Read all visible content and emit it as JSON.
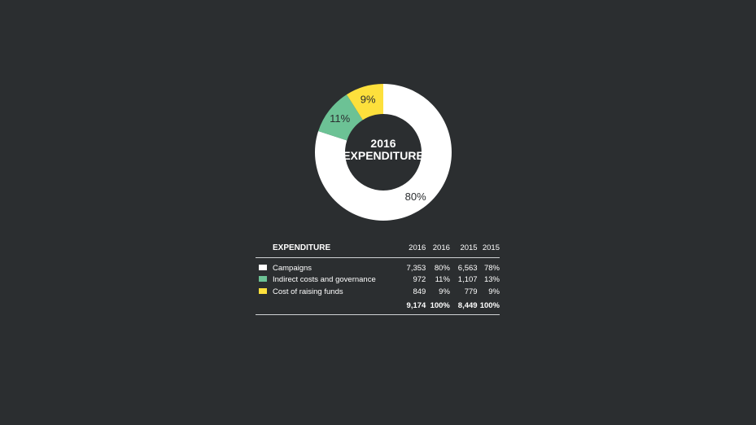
{
  "chart_data": {
    "type": "pie",
    "center_title": [
      "2016",
      "EXPENDITURE"
    ],
    "slices": [
      {
        "label": "Campaigns",
        "value": 80,
        "display": "80%",
        "color": "#ffffff",
        "label_color": "#2b2e30"
      },
      {
        "label": "Indirect costs and governance",
        "value": 11,
        "display": "11%",
        "color": "#6cc295",
        "label_color": "#2b2e30"
      },
      {
        "label": "Cost of raising funds",
        "value": 9,
        "display": "9%",
        "color": "#fde03c",
        "label_color": "#2b2e30"
      }
    ]
  },
  "table": {
    "title": "EXPENDITURE",
    "columns": [
      "2016",
      "2016",
      "2015",
      "2015"
    ],
    "rows": [
      {
        "label": "Campaigns",
        "color": "#ffffff",
        "values": [
          "7,353",
          "80%",
          "6,563",
          "78%"
        ]
      },
      {
        "label": "Indirect costs and governance",
        "color": "#6cc295",
        "values": [
          "972",
          "11%",
          "1,107",
          "13%"
        ]
      },
      {
        "label": "Cost of raising funds",
        "color": "#fde03c",
        "values": [
          "849",
          "9%",
          "779",
          "9%"
        ]
      }
    ],
    "totals": [
      "9,174",
      "100%",
      "8,449",
      "100%"
    ]
  }
}
